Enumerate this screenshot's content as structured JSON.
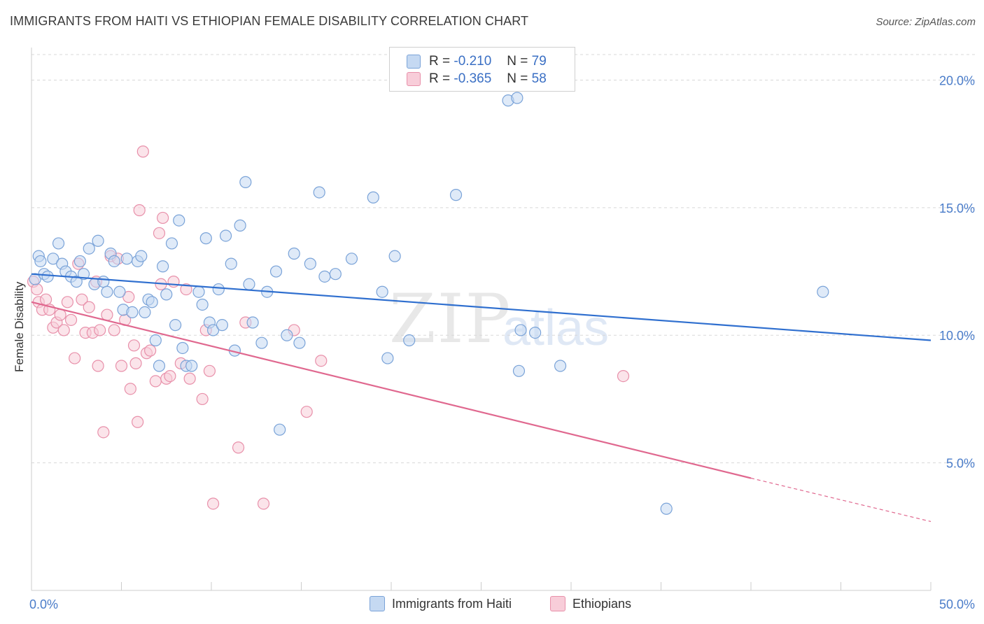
{
  "title": "IMMIGRANTS FROM HAITI VS ETHIOPIAN FEMALE DISABILITY CORRELATION CHART",
  "source": "Source: ZipAtlas.com",
  "watermark": {
    "zip": "ZIP",
    "atlas": "atlas"
  },
  "legend_top": {
    "rows": [
      {
        "r_label": "R =",
        "r_value": "-0.210",
        "n_label": "N =",
        "n_value": "79",
        "color": "#a8c8f0"
      },
      {
        "r_label": "R =",
        "r_value": "-0.365",
        "n_label": "N =",
        "n_value": "58",
        "color": "#f5b5c8"
      }
    ]
  },
  "legend_bottom": {
    "haiti": "Immigrants from Haiti",
    "ethiopians": "Ethiopians"
  },
  "colors": {
    "haiti_fill": "#c5d9f2",
    "haiti_stroke": "#7aa3d8",
    "haiti_line": "#2f6fcf",
    "eth_fill": "#f8cdd9",
    "eth_stroke": "#e890aa",
    "eth_line": "#e0688f",
    "tick_text": "#4a7cc9",
    "grid": "#d8d8d8"
  },
  "chart_data": {
    "type": "scatter",
    "title": "IMMIGRANTS FROM HAITI VS ETHIOPIAN FEMALE DISABILITY CORRELATION CHART",
    "xlabel": "",
    "ylabel": "Female Disability",
    "xlim": [
      0,
      50
    ],
    "ylim": [
      0,
      21
    ],
    "x_tick_labels": [
      "0.0%",
      "50.0%"
    ],
    "y_ticks": [
      5,
      10,
      15,
      20
    ],
    "y_tick_labels": [
      "5.0%",
      "10.0%",
      "15.0%",
      "20.0%"
    ],
    "series": [
      {
        "name": "Immigrants from Haiti",
        "r": -0.21,
        "n": 79,
        "trend": {
          "x0": 0,
          "y0": 12.4,
          "x1": 50,
          "y1": 9.8
        },
        "points": [
          [
            0.2,
            12.2
          ],
          [
            0.4,
            13.1
          ],
          [
            0.5,
            12.9
          ],
          [
            0.7,
            12.4
          ],
          [
            0.9,
            12.3
          ],
          [
            1.2,
            13.0
          ],
          [
            1.5,
            13.6
          ],
          [
            1.7,
            12.8
          ],
          [
            1.9,
            12.5
          ],
          [
            2.2,
            12.3
          ],
          [
            2.5,
            12.1
          ],
          [
            2.7,
            12.9
          ],
          [
            2.9,
            12.4
          ],
          [
            3.2,
            13.4
          ],
          [
            3.5,
            12.0
          ],
          [
            3.7,
            13.7
          ],
          [
            4.0,
            12.1
          ],
          [
            4.2,
            11.7
          ],
          [
            4.4,
            13.2
          ],
          [
            4.6,
            12.9
          ],
          [
            4.9,
            11.7
          ],
          [
            5.1,
            11.0
          ],
          [
            5.3,
            13.0
          ],
          [
            5.6,
            10.9
          ],
          [
            5.9,
            12.9
          ],
          [
            6.1,
            13.1
          ],
          [
            6.3,
            10.9
          ],
          [
            6.5,
            11.4
          ],
          [
            6.7,
            11.3
          ],
          [
            6.9,
            9.8
          ],
          [
            7.1,
            8.8
          ],
          [
            7.3,
            12.7
          ],
          [
            7.5,
            11.6
          ],
          [
            7.8,
            13.6
          ],
          [
            8.0,
            10.4
          ],
          [
            8.2,
            14.5
          ],
          [
            8.4,
            9.5
          ],
          [
            8.6,
            8.8
          ],
          [
            8.9,
            8.8
          ],
          [
            9.3,
            11.7
          ],
          [
            9.5,
            11.2
          ],
          [
            9.7,
            13.8
          ],
          [
            9.9,
            10.5
          ],
          [
            10.1,
            10.2
          ],
          [
            10.4,
            11.8
          ],
          [
            10.6,
            10.4
          ],
          [
            10.8,
            13.9
          ],
          [
            11.1,
            12.8
          ],
          [
            11.3,
            9.4
          ],
          [
            11.6,
            14.3
          ],
          [
            11.9,
            16.0
          ],
          [
            12.1,
            12.0
          ],
          [
            12.3,
            10.5
          ],
          [
            12.8,
            9.7
          ],
          [
            13.1,
            11.7
          ],
          [
            13.6,
            12.5
          ],
          [
            13.8,
            6.3
          ],
          [
            14.2,
            10.0
          ],
          [
            14.6,
            13.2
          ],
          [
            14.9,
            9.7
          ],
          [
            15.5,
            12.8
          ],
          [
            16.0,
            15.6
          ],
          [
            16.3,
            12.3
          ],
          [
            16.9,
            12.4
          ],
          [
            17.8,
            13.0
          ],
          [
            19.0,
            15.4
          ],
          [
            19.5,
            11.7
          ],
          [
            19.8,
            9.1
          ],
          [
            20.2,
            13.1
          ],
          [
            21.0,
            9.8
          ],
          [
            23.6,
            15.5
          ],
          [
            26.5,
            19.2
          ],
          [
            27.1,
            8.6
          ],
          [
            27.2,
            10.2
          ],
          [
            28.0,
            10.1
          ],
          [
            29.4,
            8.8
          ],
          [
            35.3,
            3.2
          ],
          [
            44.0,
            11.7
          ],
          [
            27.0,
            19.3
          ]
        ]
      },
      {
        "name": "Ethiopians",
        "r": -0.365,
        "n": 58,
        "trend": {
          "x0": 0,
          "y0": 11.3,
          "x1": 40,
          "y1": 4.4
        },
        "trend_dashed": {
          "x0": 40,
          "y0": 4.4,
          "x1": 50,
          "y1": 2.7
        },
        "points": [
          [
            0.1,
            12.1
          ],
          [
            0.3,
            11.8
          ],
          [
            0.4,
            11.3
          ],
          [
            0.6,
            11.0
          ],
          [
            0.8,
            11.4
          ],
          [
            1.0,
            11.0
          ],
          [
            1.2,
            10.3
          ],
          [
            1.4,
            10.5
          ],
          [
            1.6,
            10.8
          ],
          [
            1.8,
            10.2
          ],
          [
            2.0,
            11.3
          ],
          [
            2.2,
            10.6
          ],
          [
            2.4,
            9.1
          ],
          [
            2.6,
            12.8
          ],
          [
            2.8,
            11.4
          ],
          [
            3.0,
            10.1
          ],
          [
            3.2,
            11.1
          ],
          [
            3.4,
            10.1
          ],
          [
            3.6,
            12.1
          ],
          [
            3.8,
            10.2
          ],
          [
            3.7,
            8.8
          ],
          [
            4.0,
            6.2
          ],
          [
            4.2,
            10.8
          ],
          [
            4.4,
            13.1
          ],
          [
            4.6,
            10.2
          ],
          [
            4.8,
            13.0
          ],
          [
            5.0,
            8.8
          ],
          [
            5.2,
            10.6
          ],
          [
            5.4,
            11.5
          ],
          [
            5.5,
            7.9
          ],
          [
            5.7,
            9.6
          ],
          [
            5.8,
            8.9
          ],
          [
            5.9,
            6.6
          ],
          [
            6.0,
            14.9
          ],
          [
            6.2,
            17.2
          ],
          [
            6.4,
            9.3
          ],
          [
            6.6,
            9.4
          ],
          [
            6.9,
            8.2
          ],
          [
            7.1,
            14.0
          ],
          [
            7.3,
            14.6
          ],
          [
            7.5,
            8.3
          ],
          [
            7.7,
            8.4
          ],
          [
            7.9,
            12.1
          ],
          [
            8.3,
            8.9
          ],
          [
            8.6,
            11.8
          ],
          [
            8.8,
            8.3
          ],
          [
            9.5,
            7.5
          ],
          [
            9.7,
            10.2
          ],
          [
            9.9,
            8.6
          ],
          [
            10.1,
            3.4
          ],
          [
            11.5,
            5.6
          ],
          [
            11.9,
            10.5
          ],
          [
            12.9,
            3.4
          ],
          [
            14.6,
            10.2
          ],
          [
            15.3,
            7.0
          ],
          [
            16.1,
            9.0
          ],
          [
            32.9,
            8.4
          ],
          [
            7.2,
            12.0
          ]
        ]
      }
    ]
  }
}
